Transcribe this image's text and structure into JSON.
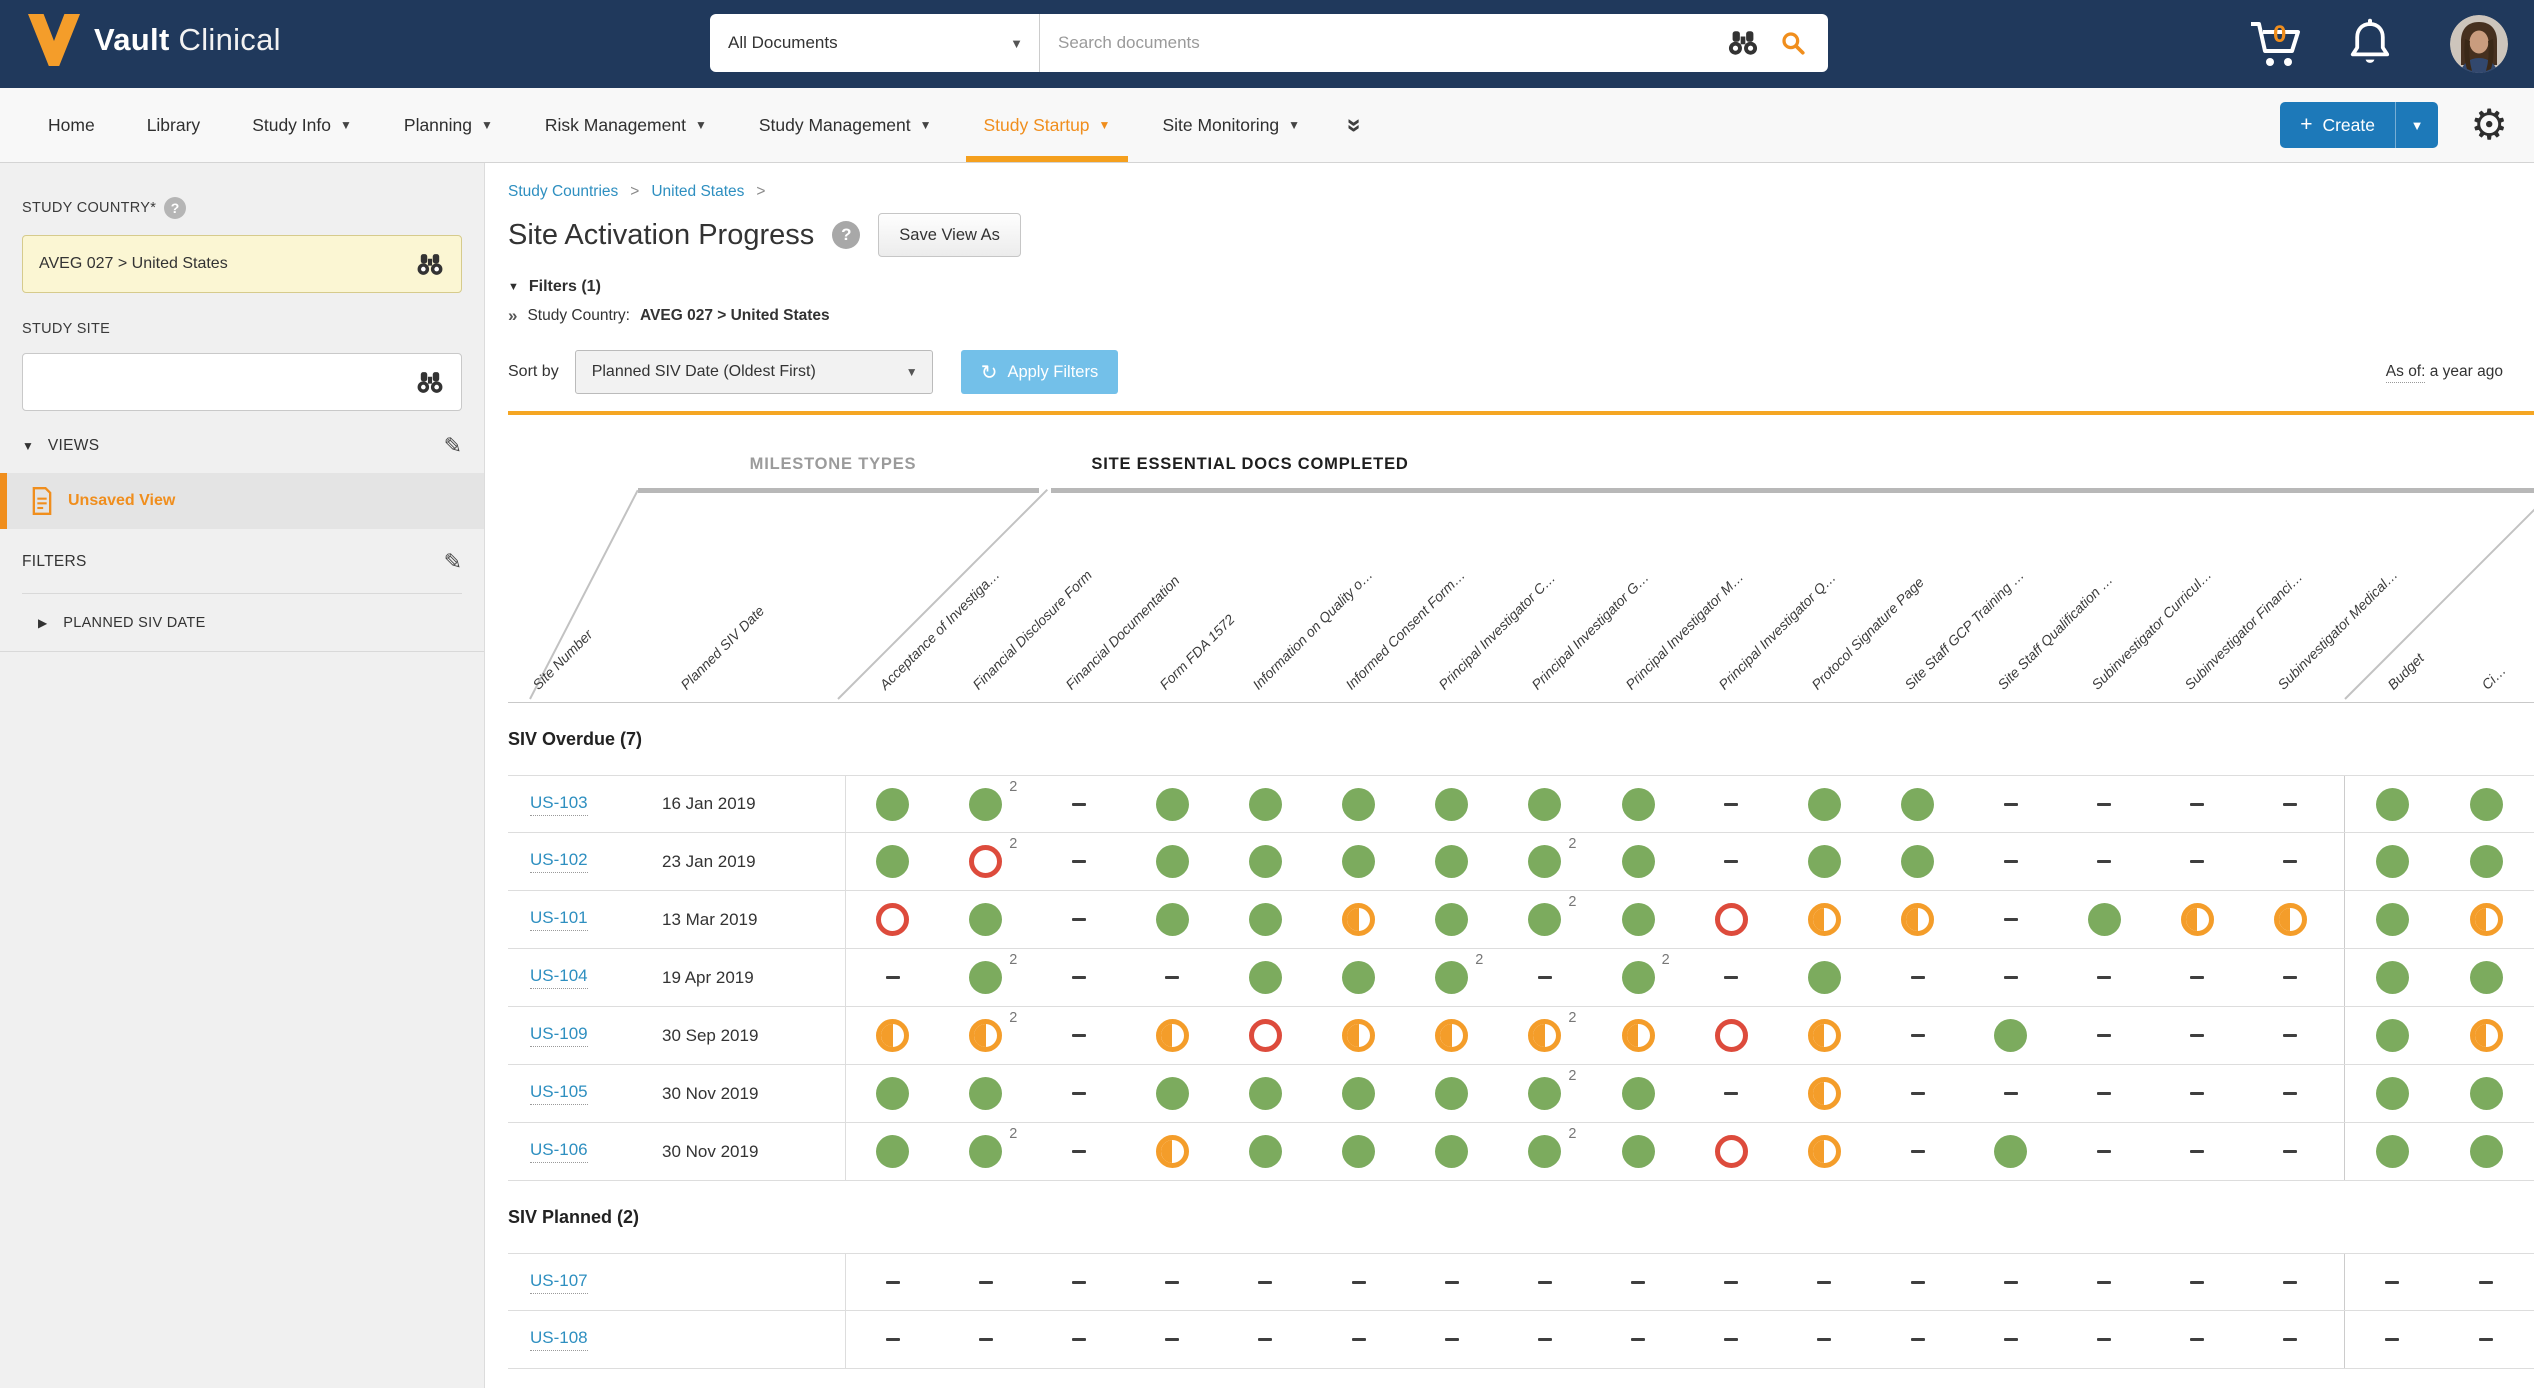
{
  "colors": {
    "navy": "#20395c",
    "active_orange": "#f08e1d",
    "tab_bar_orange": "#f5a01e",
    "rule_orange": "#f5a623",
    "link_blue": "#2e8fc0",
    "status_green": "#7cab5e",
    "status_half_orange": "#f49d2a",
    "status_red": "#dd4b3c",
    "apply_blue": "#73c0e9",
    "create_blue": "#1d79b9"
  },
  "topbar": {
    "brand_bold": "Vault",
    "brand_light": "Clinical",
    "scope_value": "All Documents",
    "search_placeholder": "Search documents",
    "cart_count": "0"
  },
  "navbar": {
    "items": [
      {
        "label": "Home",
        "caret": false
      },
      {
        "label": "Library",
        "caret": false
      },
      {
        "label": "Study Info",
        "caret": true
      },
      {
        "label": "Planning",
        "caret": true
      },
      {
        "label": "Risk Management",
        "caret": true
      },
      {
        "label": "Study Management",
        "caret": true
      },
      {
        "label": "Study Startup",
        "caret": true
      },
      {
        "label": "Site Monitoring",
        "caret": true
      }
    ],
    "active_index": 6,
    "create_label": "Create"
  },
  "sidebar": {
    "study_country_label": "STUDY COUNTRY*",
    "study_country_value": "AVEG 027 > United States",
    "study_site_label": "STUDY SITE",
    "study_site_value": "",
    "views_label": "VIEWS",
    "views_items": [
      {
        "label": "Unsaved View",
        "selected": true
      }
    ],
    "filters_label": "FILTERS",
    "filter_groups": [
      {
        "label": "PLANNED SIV DATE"
      }
    ]
  },
  "content": {
    "breadcrumb": [
      {
        "label": "Study Countries"
      },
      {
        "label": "United States"
      }
    ],
    "title": "Site Activation Progress",
    "save_view_as": "Save View As",
    "filters_toggle": "Filters (1)",
    "filter_name": "Study Country:",
    "filter_value": "AVEG 027 > United States",
    "sort_label": "Sort by",
    "sort_value": "Planned SIV Date (Oldest First)",
    "apply_label": "Apply Filters",
    "as_of_prefix": "As of:",
    "as_of_value": "a year ago"
  },
  "grid": {
    "group_left": "MILESTONE TYPES",
    "group_right": "SITE ESSENTIAL DOCS COMPLETED",
    "row_headers": [
      "Site Number",
      "Planned SIV Date"
    ],
    "doc_columns": [
      "Acceptance of Investiga…",
      "Financial Disclosure Form",
      "Financial Documentation",
      "Form FDA 1572",
      "Information on Quality o…",
      "Informed Consent Form…",
      "Principal Investigator C…",
      "Principal Investigator G…",
      "Principal Investigator M…",
      "Principal Investigator Q…",
      "Protocol Signature Page",
      "Site Staff GCP Training …",
      "Site Staff Qualification …",
      "Subinvestigator Curricul…",
      "Subinvestigator Financi…",
      "Subinvestigator Medical…"
    ],
    "extra_columns": [
      "Budget",
      "Ci…"
    ],
    "status_legend": {
      "g": "complete",
      "g2": "complete x2",
      "h": "partial",
      "h2": "partial x2",
      "r": "missing",
      "r2": "missing x2",
      "-": "not applicable"
    },
    "sections": [
      {
        "title": "SIV Overdue (7)",
        "rows": [
          {
            "site": "US-103",
            "date": "16 Jan 2019",
            "statuses": [
              "g",
              "g2",
              "-",
              "g",
              "g",
              "g",
              "g",
              "g",
              "g",
              "-",
              "g",
              "g",
              "-",
              "-",
              "-",
              "-",
              "g",
              "g"
            ]
          },
          {
            "site": "US-102",
            "date": "23 Jan 2019",
            "statuses": [
              "g",
              "r2",
              "-",
              "g",
              "g",
              "g",
              "g",
              "g2",
              "g",
              "-",
              "g",
              "g",
              "-",
              "-",
              "-",
              "-",
              "g",
              "g"
            ]
          },
          {
            "site": "US-101",
            "date": "13 Mar 2019",
            "statuses": [
              "r",
              "g",
              "-",
              "g",
              "g",
              "h",
              "g",
              "g2",
              "g",
              "r",
              "h",
              "h",
              "-",
              "g",
              "h",
              "h",
              "g",
              "h"
            ]
          },
          {
            "site": "US-104",
            "date": "19 Apr 2019",
            "statuses": [
              "-",
              "g2",
              "-",
              "-",
              "g",
              "g",
              "g2",
              "-",
              "g2",
              "-",
              "g",
              "-",
              "-",
              "-",
              "-",
              "-",
              "g",
              "g"
            ]
          },
          {
            "site": "US-109",
            "date": "30 Sep 2019",
            "statuses": [
              "h",
              "h2",
              "-",
              "h",
              "r",
              "h",
              "h",
              "h2",
              "h",
              "r",
              "h",
              "-",
              "g",
              "-",
              "-",
              "-",
              "g",
              "h"
            ]
          },
          {
            "site": "US-105",
            "date": "30 Nov 2019",
            "statuses": [
              "g",
              "g",
              "-",
              "g",
              "g",
              "g",
              "g",
              "g2",
              "g",
              "-",
              "h",
              "-",
              "-",
              "-",
              "-",
              "-",
              "g",
              "g"
            ]
          },
          {
            "site": "US-106",
            "date": "30 Nov 2019",
            "statuses": [
              "g",
              "g2",
              "-",
              "h",
              "g",
              "g",
              "g",
              "g2",
              "g",
              "r",
              "h",
              "-",
              "g",
              "-",
              "-",
              "-",
              "g",
              "g"
            ]
          }
        ]
      },
      {
        "title": "SIV Planned (2)",
        "rows": [
          {
            "site": "US-107",
            "date": "",
            "statuses": [
              "-",
              "-",
              "-",
              "-",
              "-",
              "-",
              "-",
              "-",
              "-",
              "-",
              "-",
              "-",
              "-",
              "-",
              "-",
              "-",
              "-",
              "-"
            ]
          },
          {
            "site": "US-108",
            "date": "",
            "statuses": [
              "-",
              "-",
              "-",
              "-",
              "-",
              "-",
              "-",
              "-",
              "-",
              "-",
              "-",
              "-",
              "-",
              "-",
              "-",
              "-",
              "-",
              "-"
            ]
          }
        ]
      }
    ]
  }
}
